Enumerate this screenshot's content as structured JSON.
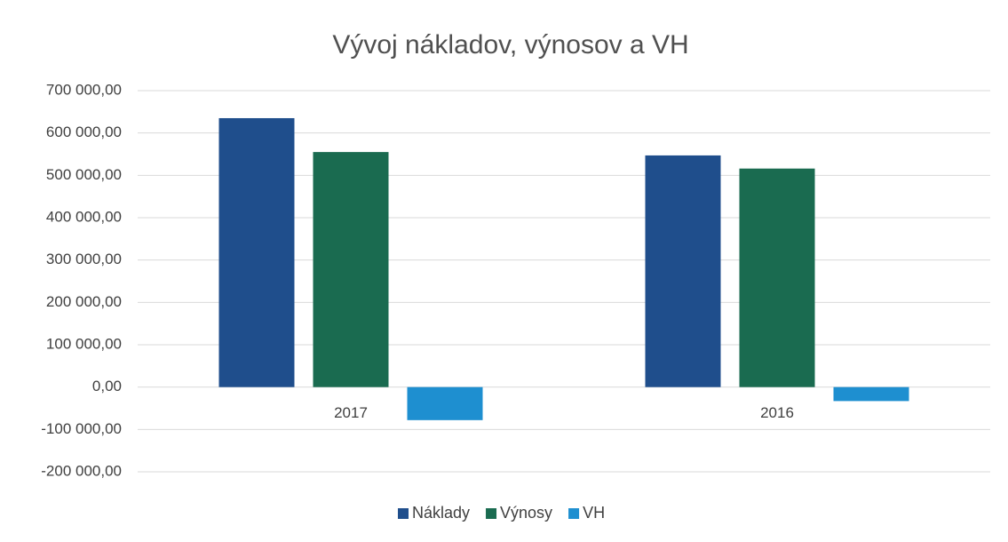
{
  "chart_data": {
    "type": "bar",
    "title": "Vývoj nákladov, výnosov a VH",
    "categories": [
      "2017",
      "2016"
    ],
    "series": [
      {
        "name": "Náklady",
        "color": "#1f4e8c",
        "values": [
          635000,
          547000
        ]
      },
      {
        "name": "Výnosy",
        "color": "#1a6b50",
        "values": [
          555000,
          516000
        ]
      },
      {
        "name": "VH",
        "color": "#1e8fd0",
        "values": [
          -78000,
          -33000
        ]
      }
    ],
    "ylim": [
      -200000,
      700000
    ],
    "yticks": [
      {
        "value": -200000,
        "label": "-200 000,00"
      },
      {
        "value": -100000,
        "label": "-100 000,00"
      },
      {
        "value": 0,
        "label": "0,00"
      },
      {
        "value": 100000,
        "label": "100 000,00"
      },
      {
        "value": 200000,
        "label": "200 000,00"
      },
      {
        "value": 300000,
        "label": "300 000,00"
      },
      {
        "value": 400000,
        "label": "400 000,00"
      },
      {
        "value": 500000,
        "label": "500 000,00"
      },
      {
        "value": 600000,
        "label": "600 000,00"
      },
      {
        "value": 700000,
        "label": "700 000,00"
      }
    ],
    "grid": true,
    "legend": "bottom"
  }
}
